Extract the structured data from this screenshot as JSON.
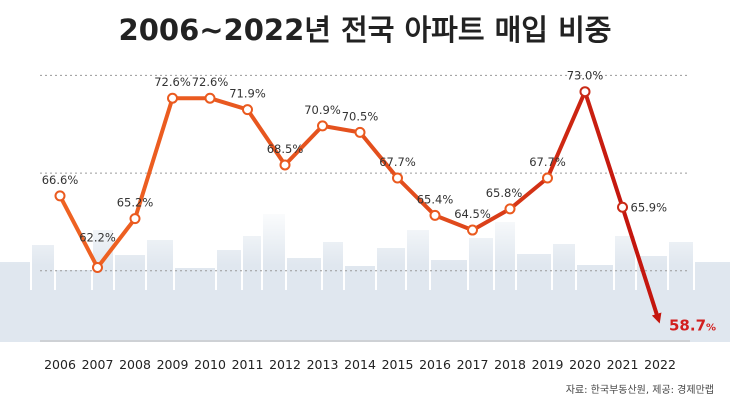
{
  "chart_data": {
    "type": "line",
    "title": "2006~2022년 전국 아파트 매입 비중",
    "categories": [
      "2006",
      "2007",
      "2008",
      "2009",
      "2010",
      "2011",
      "2012",
      "2013",
      "2014",
      "2015",
      "2016",
      "2017",
      "2018",
      "2019",
      "2020",
      "2021",
      "2022"
    ],
    "series": [
      {
        "values": [
          66.6,
          62.2,
          65.2,
          72.6,
          72.6,
          71.9,
          68.5,
          70.9,
          70.5,
          67.7,
          65.4,
          64.5,
          65.8,
          67.7,
          73.0,
          65.9,
          58.7
        ]
      }
    ],
    "data_labels": [
      "66.6%",
      "62.2%",
      "65.2%",
      "72.6%",
      "72.6%",
      "71.9%",
      "68.5%",
      "70.9%",
      "70.5%",
      "67.7%",
      "65.4%",
      "64.5%",
      "65.8%",
      "67.7%",
      "73.0%",
      "65.9%",
      "58.7"
    ],
    "last_label_unit": "%",
    "ylim": [
      57.5,
      75.5
    ],
    "grid": true,
    "colors": {
      "line_start": "#ef6322",
      "line_end": "#c4160e",
      "marker_fill": "#ffffff",
      "last_label": "#d21f1f",
      "skyline": "#dde5ee"
    },
    "source": "자료: 한국부동산원, 제공: 경제만랩"
  }
}
